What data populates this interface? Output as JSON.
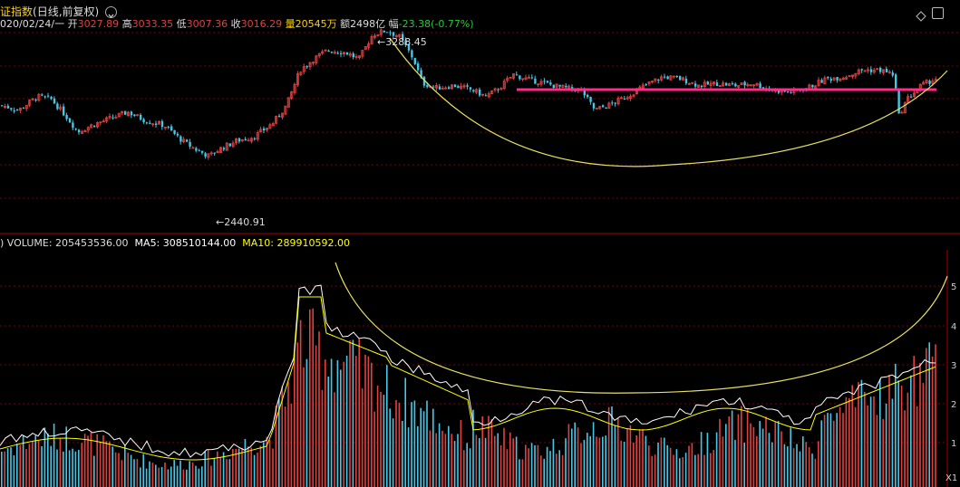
{
  "header": {
    "title": "证指数",
    "period": "(日线,前复权)",
    "date": "020/02/24/一",
    "open_label": "开",
    "open": "3027.89",
    "high_label": "高",
    "high": "3033.35",
    "low_label": "低",
    "low": "3007.36",
    "close_label": "收",
    "close": "3016.29",
    "vol_label": "量",
    "vol": "20545万",
    "amt_label": "额",
    "amt": "2498亿",
    "chg_label": "幅",
    "chg": "-23.38(-0.77%)"
  },
  "volume_header": {
    "label": ") VOLUME: 205453536.00",
    "ma5": "MA5: 308510144.00",
    "ma10": "MA10: 289910592.00"
  },
  "annotations": {
    "high_marker": "3288.45",
    "low_marker": "2440.91"
  },
  "volume_axis_labels": [
    "5",
    "4",
    "3",
    "2",
    "1"
  ],
  "corner_label": "X1",
  "colors": {
    "up": "#e04040",
    "down": "#45c8e8",
    "grid": "#7a0000",
    "resistance": "#ff2a8a",
    "arc": "#e8e060",
    "ma5": "#ffffff",
    "ma10": "#ffff00"
  },
  "chart_data": [
    {
      "type": "candlestick",
      "chart_id": "price",
      "annotations": [
        {
          "label": "3288.45",
          "value": 3288.45,
          "kind": "high"
        },
        {
          "label": "2440.91",
          "value": 2440.91,
          "kind": "low"
        }
      ],
      "ohlc_latest": {
        "open": 3027.89,
        "high": 3033.35,
        "low": 3007.36,
        "close": 3016.29
      },
      "overlays": [
        "horizontal resistance line",
        "rounded-bottom arc"
      ]
    },
    {
      "type": "bar",
      "chart_id": "volume",
      "latest_volume": 205453536.0,
      "ma5": 308510144.0,
      "ma10": 289910592.0,
      "overlays": [
        "MA5 line",
        "MA10 line",
        "rounded-bottom arc"
      ]
    }
  ]
}
